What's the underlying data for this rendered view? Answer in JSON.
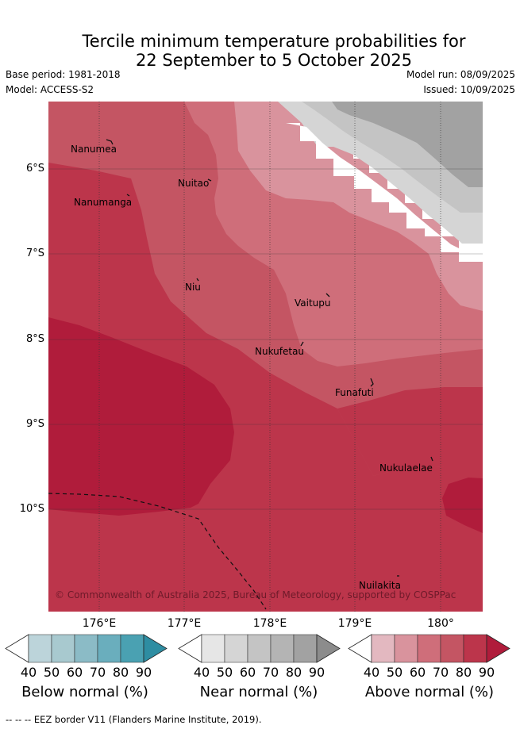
{
  "title_line1": "Tercile minimum temperature probabilities for",
  "title_line2": "22 September to 5 October 2025",
  "base_period": "Base period: 1981-2018",
  "model": "Model: ACCESS-S2",
  "model_run": "Model run: 08/09/2025",
  "issued": "Issued: 10/09/2025",
  "lat_labels": [
    "6°S",
    "7°S",
    "8°S",
    "9°S",
    "10°S"
  ],
  "lon_labels": [
    "176°E",
    "177°E",
    "178°E",
    "179°E",
    "180°"
  ],
  "places": {
    "nanumea": "Nanumea",
    "nanumanga": "Nanumanga",
    "nuitao": "Nuitao",
    "niu": "Niu",
    "vaitupu": "Vaitupu",
    "nukufetau": "Nukufetau",
    "funafuti": "Funafuti",
    "nukulaelae": "Nukulaelae",
    "nuilakita": "Nuilakita"
  },
  "copyright": "© Commonwealth of Australia 2025, Bureau of Meteorology, supported by COSPPac",
  "colorbar_ticks": [
    "40",
    "50",
    "60",
    "70",
    "80",
    "90"
  ],
  "colorbars": {
    "below": {
      "label": "Below normal (%)",
      "colors": [
        "#bcd4da",
        "#a8c9cf",
        "#8bbbc6",
        "#6aaebd",
        "#4aa1b2",
        "#2e8da2"
      ]
    },
    "near": {
      "label": "Near normal (%)",
      "colors": [
        "#e6e6e6",
        "#d5d5d5",
        "#c4c4c4",
        "#b4b4b4",
        "#a2a2a2",
        "#8c8c8c"
      ]
    },
    "above": {
      "label": "Above normal (%)",
      "colors": [
        "#e3b8c0",
        "#d9939d",
        "#cf6e7a",
        "#c45563",
        "#bc354b",
        "#b01c3b"
      ]
    }
  },
  "footer": "--  --  -- EEZ border V11 (Flanders Marine Institute, 2019)."
}
